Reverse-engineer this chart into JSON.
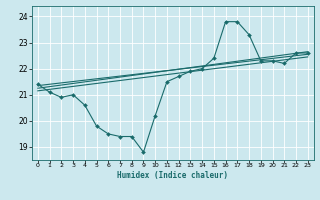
{
  "title": "",
  "xlabel": "Humidex (Indice chaleur)",
  "bg_color": "#cce8ee",
  "line_color": "#1a6b6b",
  "grid_color": "#ffffff",
  "xlim": [
    -0.5,
    23.5
  ],
  "ylim": [
    18.5,
    24.4
  ],
  "yticks": [
    19,
    20,
    21,
    22,
    23,
    24
  ],
  "xticks": [
    0,
    1,
    2,
    3,
    4,
    5,
    6,
    7,
    8,
    9,
    10,
    11,
    12,
    13,
    14,
    15,
    16,
    17,
    18,
    19,
    20,
    21,
    22,
    23
  ],
  "series1": {
    "x": [
      0,
      1,
      2,
      3,
      4,
      5,
      6,
      7,
      8,
      9,
      10,
      11,
      12,
      13,
      14,
      15,
      16,
      17,
      18,
      19,
      20,
      21,
      22,
      23
    ],
    "y": [
      21.4,
      21.1,
      20.9,
      21.0,
      20.6,
      19.8,
      19.5,
      19.4,
      19.4,
      18.8,
      20.2,
      21.5,
      21.7,
      21.9,
      22.0,
      22.4,
      23.8,
      23.8,
      23.3,
      22.3,
      22.3,
      22.2,
      22.6,
      22.6
    ]
  },
  "series2": {
    "x": [
      0,
      23
    ],
    "y": [
      21.35,
      22.55
    ]
  },
  "series3": {
    "x": [
      0,
      23
    ],
    "y": [
      21.25,
      22.65
    ]
  },
  "series4": {
    "x": [
      0,
      23
    ],
    "y": [
      21.15,
      22.45
    ]
  }
}
